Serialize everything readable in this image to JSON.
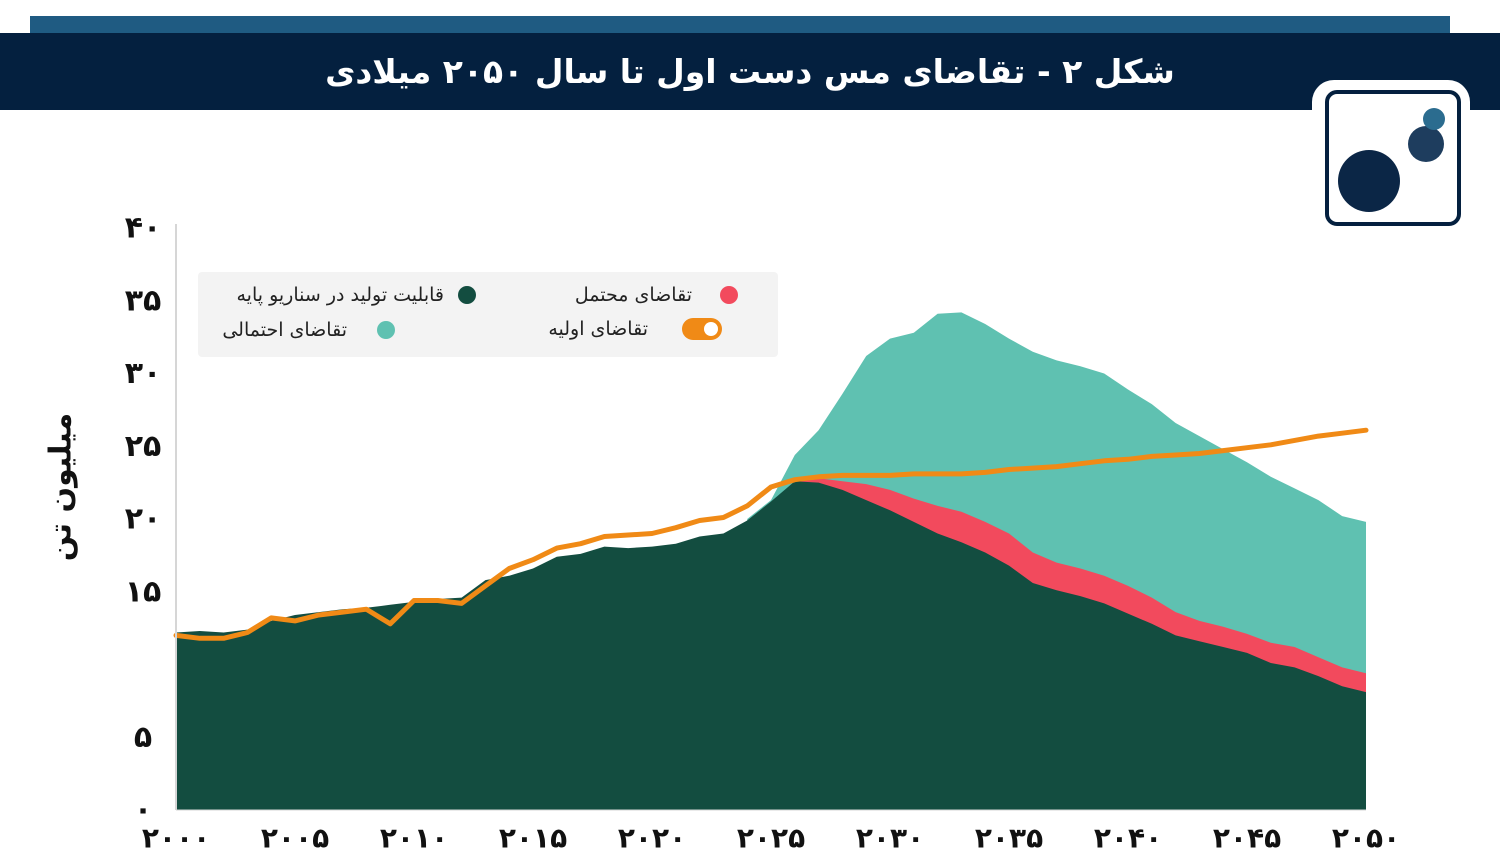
{
  "header": {
    "title": "شکل ۲ - تقاضای مس دست اول تا سال ۲۰۵۰ میلادی"
  },
  "logo": {
    "icon": "three-dots-logo-icon",
    "colors": [
      "#0b2646",
      "#1e3d5e",
      "#2b6c8f"
    ]
  },
  "chart_data": {
    "type": "area",
    "ylabel": "میلیون تن",
    "xlim": [
      2000,
      2050
    ],
    "ylim": [
      0,
      40
    ],
    "yticks": [
      {
        "value": 0,
        "label": "۰"
      },
      {
        "value": 5,
        "label": "۵"
      },
      {
        "value": 15,
        "label": "۱۵"
      },
      {
        "value": 20,
        "label": "۲۰"
      },
      {
        "value": 25,
        "label": "۲۵"
      },
      {
        "value": 30,
        "label": "۳۰"
      },
      {
        "value": 35,
        "label": "۳۵"
      },
      {
        "value": 40,
        "label": "۴۰"
      }
    ],
    "xticks": [
      {
        "value": 2000,
        "label": "۲۰۰۰"
      },
      {
        "value": 2005,
        "label": "۲۰۰۵"
      },
      {
        "value": 2010,
        "label": "۲۰۱۰"
      },
      {
        "value": 2015,
        "label": "۲۰۱۵"
      },
      {
        "value": 2020,
        "label": "۲۰۲۰"
      },
      {
        "value": 2025,
        "label": "۲۰۲۵"
      },
      {
        "value": 2030,
        "label": "۲۰۳۰"
      },
      {
        "value": 2035,
        "label": "۲۰۳۵"
      },
      {
        "value": 2040,
        "label": "۲۰۴۰"
      },
      {
        "value": 2045,
        "label": "۲۰۴۵"
      },
      {
        "value": 2050,
        "label": "۲۰۵۰"
      }
    ],
    "legend_position": "top-left",
    "series": [
      {
        "name": "قابلیت تولید در سناریو پایه",
        "kind": "area",
        "color": "#134d40",
        "points": [
          [
            2000,
            12.2
          ],
          [
            2001,
            12.3
          ],
          [
            2002,
            12.2
          ],
          [
            2003,
            12.4
          ],
          [
            2004,
            13.0
          ],
          [
            2005,
            13.4
          ],
          [
            2006,
            13.6
          ],
          [
            2007,
            13.8
          ],
          [
            2008,
            13.9
          ],
          [
            2009,
            14.1
          ],
          [
            2010,
            14.3
          ],
          [
            2011,
            14.5
          ],
          [
            2012,
            14.6
          ],
          [
            2013,
            15.8
          ],
          [
            2014,
            16.1
          ],
          [
            2015,
            16.6
          ],
          [
            2016,
            17.4
          ],
          [
            2017,
            17.6
          ],
          [
            2018,
            18.1
          ],
          [
            2019,
            18.0
          ],
          [
            2020,
            18.1
          ],
          [
            2021,
            18.3
          ],
          [
            2022,
            18.8
          ],
          [
            2023,
            19.0
          ],
          [
            2024,
            19.9
          ],
          [
            2025,
            21.2
          ],
          [
            2026,
            22.6
          ],
          [
            2027,
            22.5
          ],
          [
            2028,
            22.0
          ],
          [
            2029,
            21.3
          ],
          [
            2030,
            20.6
          ],
          [
            2031,
            19.8
          ],
          [
            2032,
            19.0
          ],
          [
            2033,
            18.4
          ],
          [
            2034,
            17.7
          ],
          [
            2035,
            16.8
          ],
          [
            2036,
            15.6
          ],
          [
            2037,
            15.1
          ],
          [
            2038,
            14.7
          ],
          [
            2039,
            14.2
          ],
          [
            2040,
            13.5
          ],
          [
            2041,
            12.8
          ],
          [
            2042,
            12.0
          ],
          [
            2043,
            11.6
          ],
          [
            2044,
            11.2
          ],
          [
            2045,
            10.8
          ],
          [
            2046,
            10.1
          ],
          [
            2047,
            9.8
          ],
          [
            2048,
            9.2
          ],
          [
            2049,
            8.5
          ],
          [
            2050,
            8.1
          ]
        ]
      },
      {
        "name": "تقاضای محتمل",
        "kind": "area",
        "color": "#f24a5d",
        "points": [
          [
            2026,
            22.6
          ],
          [
            2027,
            22.8
          ],
          [
            2028,
            22.6
          ],
          [
            2029,
            22.4
          ],
          [
            2030,
            22.0
          ],
          [
            2031,
            21.4
          ],
          [
            2032,
            20.9
          ],
          [
            2033,
            20.5
          ],
          [
            2034,
            19.8
          ],
          [
            2035,
            19.0
          ],
          [
            2036,
            17.7
          ],
          [
            2037,
            17.0
          ],
          [
            2038,
            16.6
          ],
          [
            2039,
            16.1
          ],
          [
            2040,
            15.4
          ],
          [
            2041,
            14.6
          ],
          [
            2042,
            13.6
          ],
          [
            2043,
            13.0
          ],
          [
            2044,
            12.6
          ],
          [
            2045,
            12.1
          ],
          [
            2046,
            11.5
          ],
          [
            2047,
            11.2
          ],
          [
            2048,
            10.5
          ],
          [
            2049,
            9.8
          ],
          [
            2050,
            9.4
          ]
        ]
      },
      {
        "name": "تقاضای احتمالی",
        "kind": "area",
        "color": "#5fc1b1",
        "points": [
          [
            2024,
            20.0
          ],
          [
            2025,
            21.3
          ],
          [
            2026,
            24.4
          ],
          [
            2027,
            26.1
          ],
          [
            2028,
            28.6
          ],
          [
            2029,
            31.2
          ],
          [
            2030,
            32.4
          ],
          [
            2031,
            32.8
          ],
          [
            2032,
            34.1
          ],
          [
            2033,
            34.2
          ],
          [
            2034,
            33.4
          ],
          [
            2035,
            32.4
          ],
          [
            2036,
            31.5
          ],
          [
            2037,
            30.9
          ],
          [
            2038,
            30.5
          ],
          [
            2039,
            30.0
          ],
          [
            2040,
            28.9
          ],
          [
            2041,
            27.9
          ],
          [
            2042,
            26.6
          ],
          [
            2043,
            25.7
          ],
          [
            2044,
            24.8
          ],
          [
            2045,
            23.9
          ],
          [
            2046,
            22.9
          ],
          [
            2047,
            22.1
          ],
          [
            2048,
            21.3
          ],
          [
            2049,
            20.2
          ],
          [
            2050,
            19.8
          ]
        ]
      },
      {
        "name": "تقاضای اولیه",
        "kind": "line",
        "color": "#f08a16",
        "points": [
          [
            2000,
            12.0
          ],
          [
            2001,
            11.8
          ],
          [
            2002,
            11.8
          ],
          [
            2003,
            12.2
          ],
          [
            2004,
            13.2
          ],
          [
            2005,
            13.0
          ],
          [
            2006,
            13.4
          ],
          [
            2007,
            13.6
          ],
          [
            2008,
            13.8
          ],
          [
            2009,
            12.8
          ],
          [
            2010,
            14.4
          ],
          [
            2011,
            14.4
          ],
          [
            2012,
            14.2
          ],
          [
            2013,
            15.4
          ],
          [
            2014,
            16.6
          ],
          [
            2015,
            17.2
          ],
          [
            2016,
            18.0
          ],
          [
            2017,
            18.3
          ],
          [
            2018,
            18.8
          ],
          [
            2019,
            18.9
          ],
          [
            2020,
            19.0
          ],
          [
            2021,
            19.4
          ],
          [
            2022,
            19.9
          ],
          [
            2023,
            20.1
          ],
          [
            2024,
            20.9
          ],
          [
            2025,
            22.2
          ],
          [
            2026,
            22.7
          ],
          [
            2027,
            22.9
          ],
          [
            2028,
            23.0
          ],
          [
            2029,
            23.0
          ],
          [
            2030,
            23.0
          ],
          [
            2031,
            23.1
          ],
          [
            2032,
            23.1
          ],
          [
            2033,
            23.1
          ],
          [
            2034,
            23.2
          ],
          [
            2035,
            23.4
          ],
          [
            2036,
            23.5
          ],
          [
            2037,
            23.6
          ],
          [
            2038,
            23.8
          ],
          [
            2039,
            24.0
          ],
          [
            2040,
            24.1
          ],
          [
            2041,
            24.3
          ],
          [
            2042,
            24.4
          ],
          [
            2043,
            24.5
          ],
          [
            2044,
            24.7
          ],
          [
            2045,
            24.9
          ],
          [
            2046,
            25.1
          ],
          [
            2047,
            25.4
          ],
          [
            2048,
            25.7
          ],
          [
            2049,
            25.9
          ],
          [
            2050,
            26.1
          ]
        ]
      }
    ]
  }
}
